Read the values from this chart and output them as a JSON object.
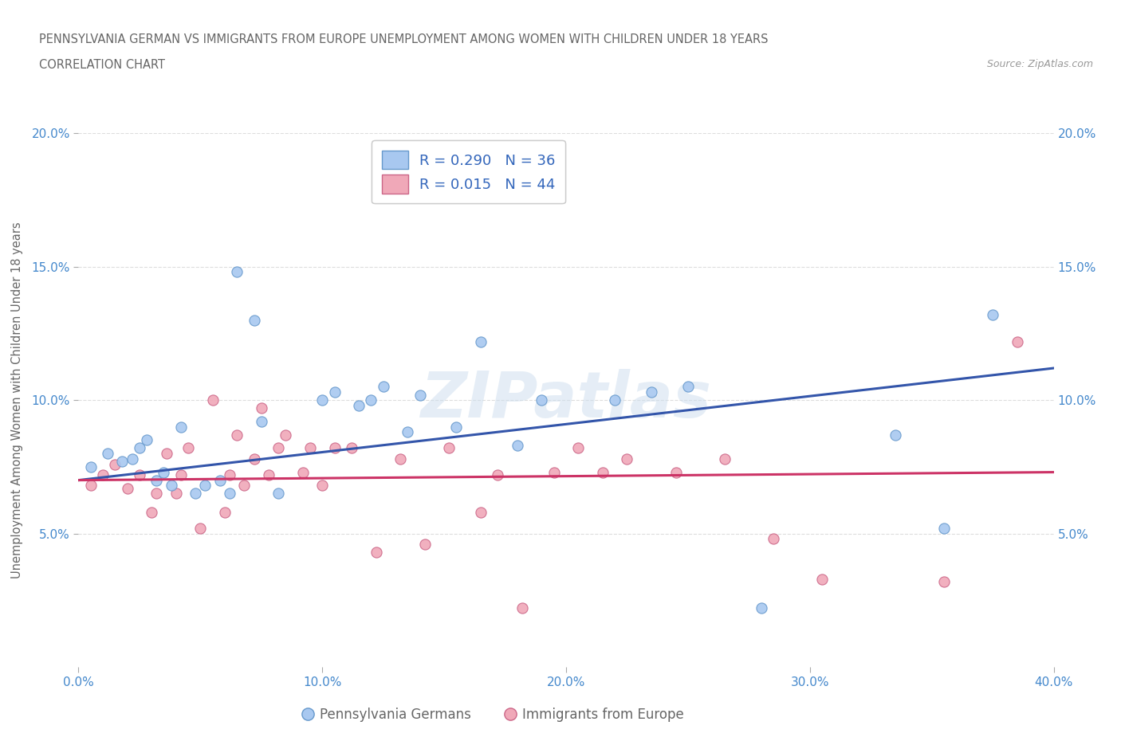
{
  "title_line1": "PENNSYLVANIA GERMAN VS IMMIGRANTS FROM EUROPE UNEMPLOYMENT AMONG WOMEN WITH CHILDREN UNDER 18 YEARS",
  "title_line2": "CORRELATION CHART",
  "source": "Source: ZipAtlas.com",
  "ylabel": "Unemployment Among Women with Children Under 18 years",
  "xlim": [
    0.0,
    0.4
  ],
  "ylim": [
    0.0,
    0.2
  ],
  "xticks": [
    0.0,
    0.1,
    0.2,
    0.3,
    0.4
  ],
  "yticks": [
    0.05,
    0.1,
    0.15,
    0.2
  ],
  "xtick_labels": [
    "0.0%",
    "10.0%",
    "20.0%",
    "30.0%",
    "40.0%"
  ],
  "ytick_labels": [
    "5.0%",
    "10.0%",
    "15.0%",
    "20.0%"
  ],
  "blue_scatter_color": "#a8c8f0",
  "blue_edge_color": "#6699cc",
  "pink_scatter_color": "#f0a8b8",
  "pink_edge_color": "#cc6688",
  "blue_line_color": "#3355aa",
  "pink_line_color": "#cc3366",
  "blue_R": 0.29,
  "blue_N": 36,
  "pink_R": 0.015,
  "pink_N": 44,
  "legend_label_blue": "Pennsylvania Germans",
  "legend_label_pink": "Immigrants from Europe",
  "watermark": "ZIPatlas",
  "blue_scatter_x": [
    0.005,
    0.012,
    0.018,
    0.022,
    0.025,
    0.028,
    0.032,
    0.035,
    0.038,
    0.042,
    0.048,
    0.052,
    0.058,
    0.062,
    0.065,
    0.072,
    0.075,
    0.082,
    0.1,
    0.105,
    0.115,
    0.12,
    0.125,
    0.135,
    0.14,
    0.155,
    0.165,
    0.18,
    0.19,
    0.22,
    0.235,
    0.25,
    0.28,
    0.335,
    0.355,
    0.375
  ],
  "blue_scatter_y": [
    0.075,
    0.08,
    0.077,
    0.078,
    0.082,
    0.085,
    0.07,
    0.073,
    0.068,
    0.09,
    0.065,
    0.068,
    0.07,
    0.065,
    0.148,
    0.13,
    0.092,
    0.065,
    0.1,
    0.103,
    0.098,
    0.1,
    0.105,
    0.088,
    0.102,
    0.09,
    0.122,
    0.083,
    0.1,
    0.1,
    0.103,
    0.105,
    0.022,
    0.087,
    0.052,
    0.132
  ],
  "pink_scatter_x": [
    0.005,
    0.01,
    0.015,
    0.02,
    0.025,
    0.03,
    0.032,
    0.036,
    0.04,
    0.042,
    0.045,
    0.05,
    0.055,
    0.06,
    0.062,
    0.065,
    0.068,
    0.072,
    0.075,
    0.078,
    0.082,
    0.085,
    0.092,
    0.095,
    0.1,
    0.105,
    0.112,
    0.122,
    0.132,
    0.142,
    0.152,
    0.165,
    0.172,
    0.182,
    0.195,
    0.205,
    0.215,
    0.225,
    0.245,
    0.265,
    0.285,
    0.305,
    0.355,
    0.385
  ],
  "pink_scatter_y": [
    0.068,
    0.072,
    0.076,
    0.067,
    0.072,
    0.058,
    0.065,
    0.08,
    0.065,
    0.072,
    0.082,
    0.052,
    0.1,
    0.058,
    0.072,
    0.087,
    0.068,
    0.078,
    0.097,
    0.072,
    0.082,
    0.087,
    0.073,
    0.082,
    0.068,
    0.082,
    0.082,
    0.043,
    0.078,
    0.046,
    0.082,
    0.058,
    0.072,
    0.022,
    0.073,
    0.082,
    0.073,
    0.078,
    0.073,
    0.078,
    0.048,
    0.033,
    0.032,
    0.122
  ],
  "background_color": "#ffffff",
  "grid_color": "#dddddd",
  "title_color": "#666666",
  "tick_color": "#4488cc",
  "legend_text_color": "#3366bb"
}
